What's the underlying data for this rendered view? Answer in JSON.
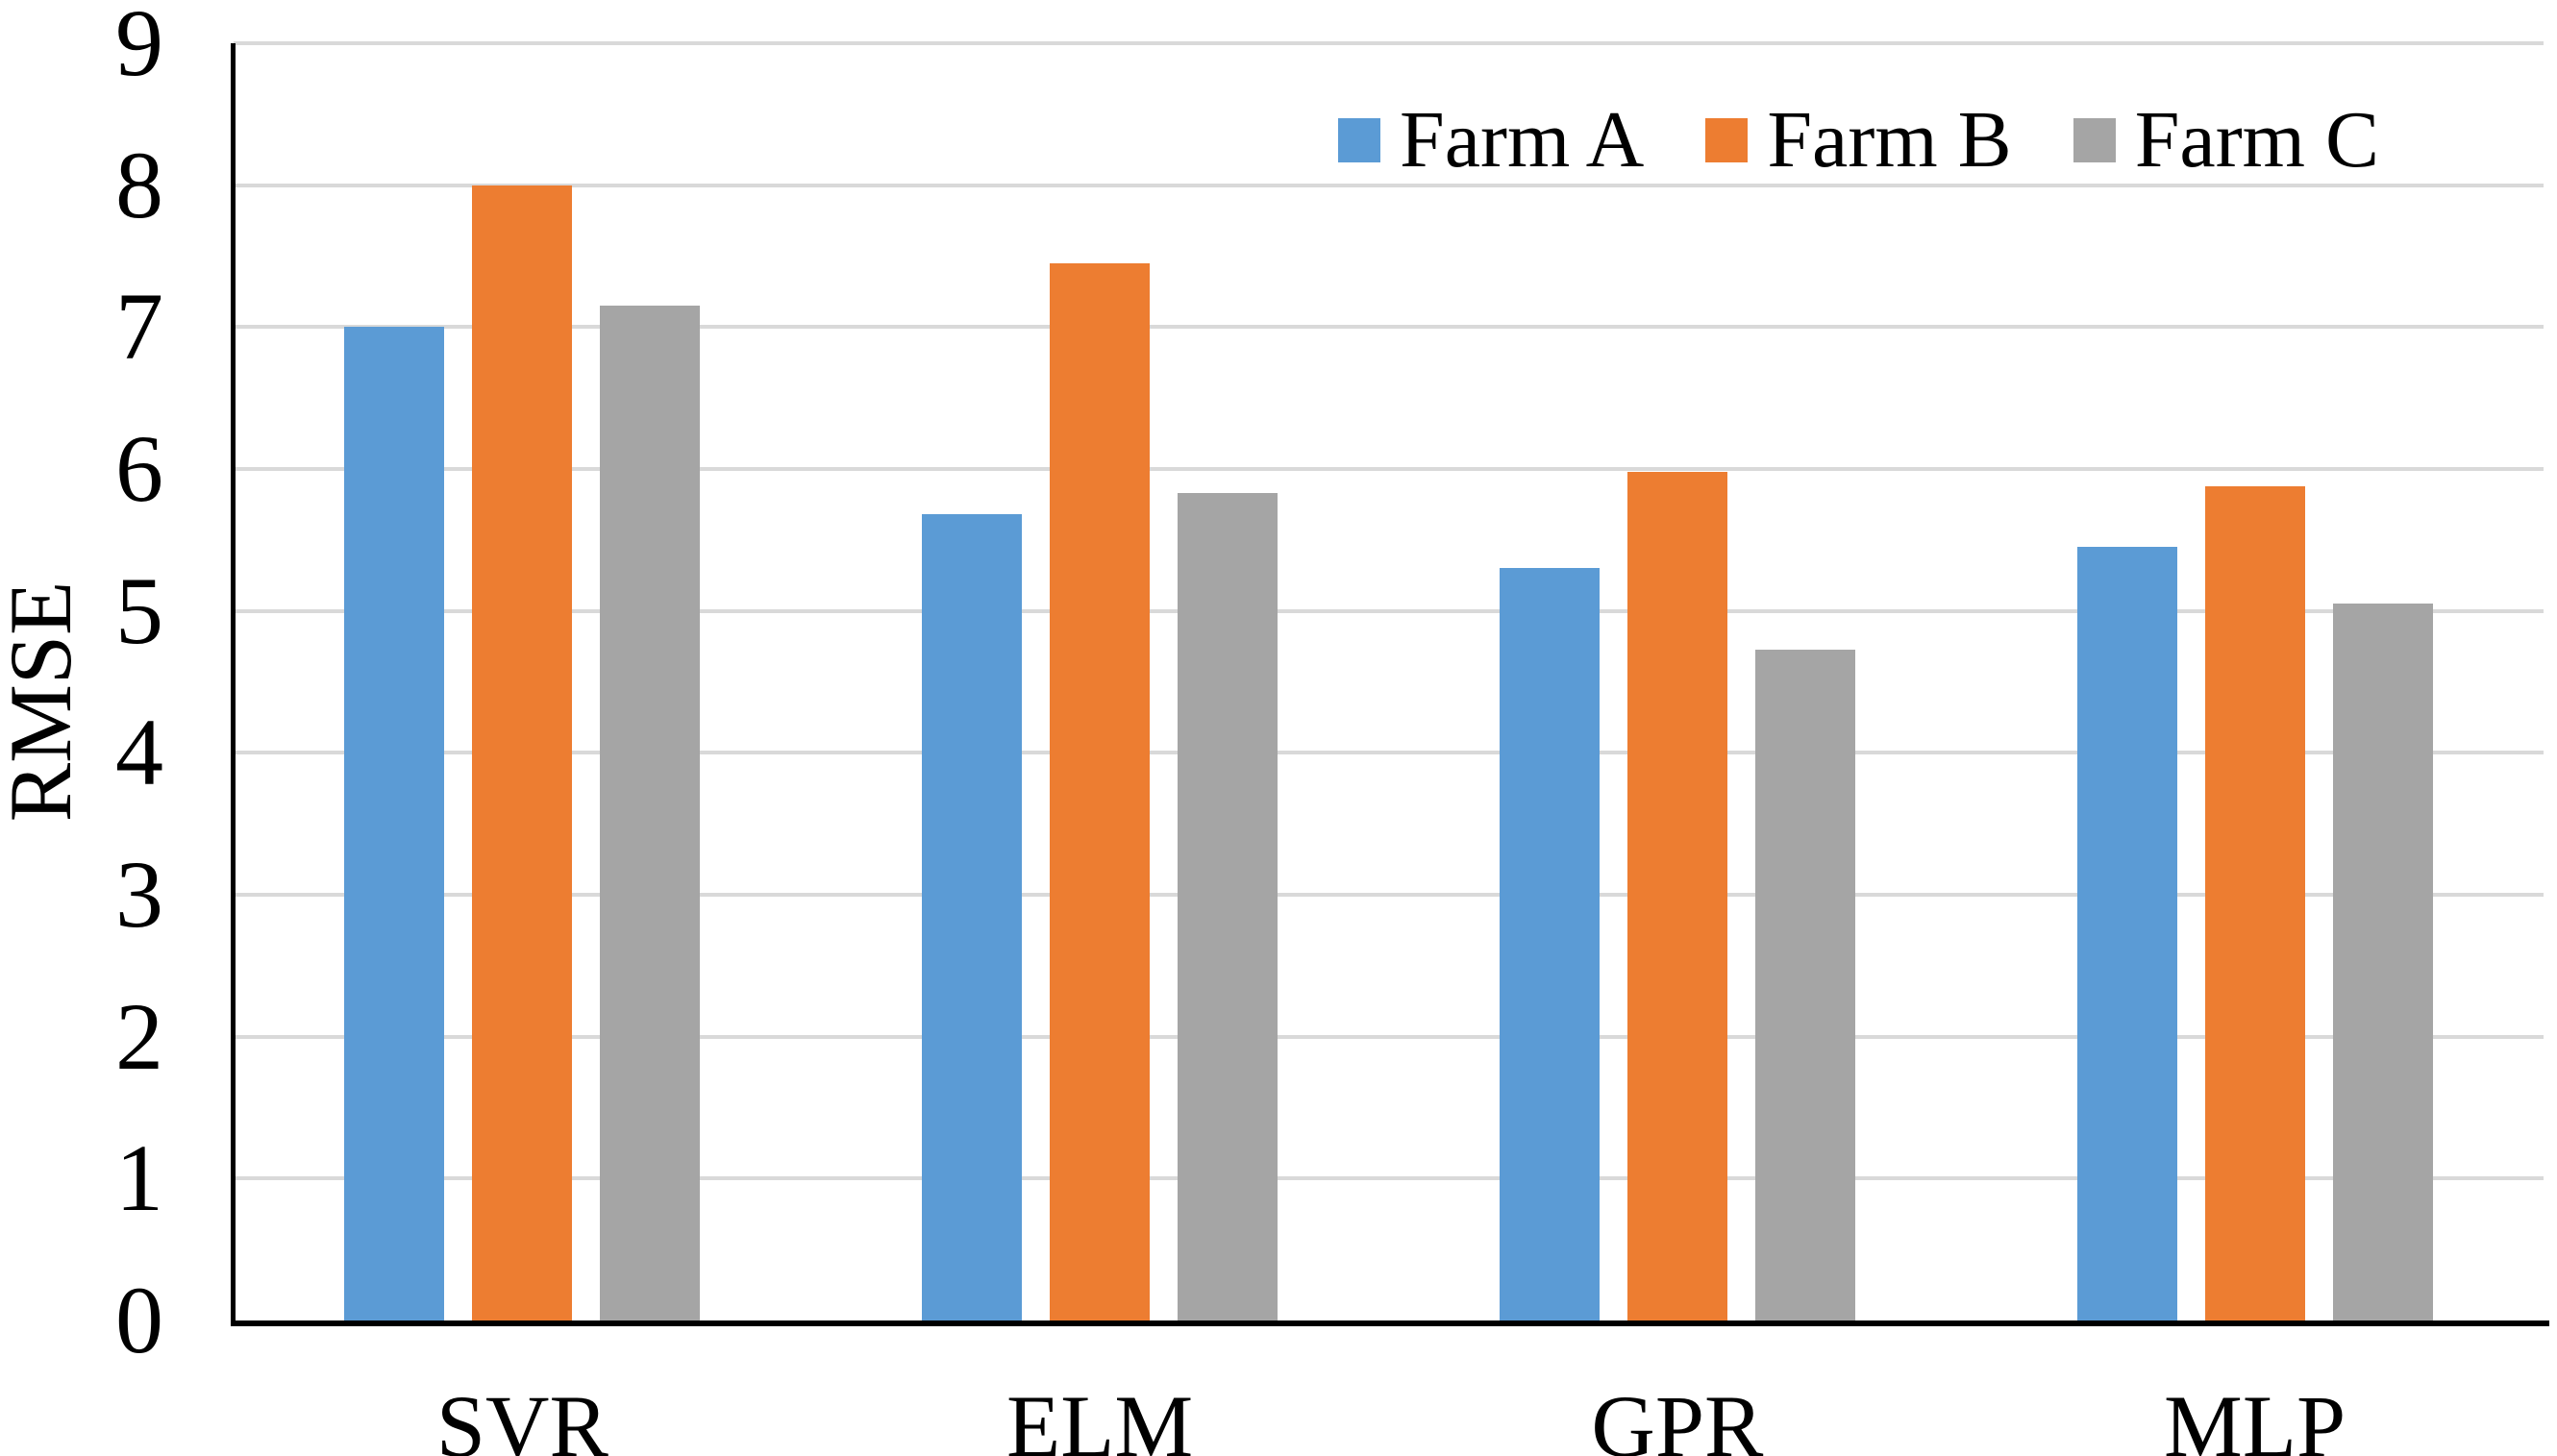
{
  "figure": {
    "background_color": "#ffffff",
    "text_color": "#000000"
  },
  "chart_data": {
    "type": "bar",
    "title": "",
    "xlabel": "",
    "ylabel": "RMSE",
    "categories": [
      "SVR",
      "ELM",
      "GPR",
      "MLP"
    ],
    "series": [
      {
        "name": "Farm A",
        "color": "#5B9BD5",
        "values": [
          7.0,
          5.68,
          5.3,
          5.45
        ]
      },
      {
        "name": "Farm B",
        "color": "#ED7D31",
        "values": [
          8.0,
          7.45,
          5.98,
          5.88
        ]
      },
      {
        "name": "Farm C",
        "color": "#A5A5A5",
        "values": [
          7.15,
          5.83,
          4.73,
          5.05
        ]
      }
    ],
    "ylim": [
      0,
      9
    ],
    "yticks": [
      0,
      1,
      2,
      3,
      4,
      5,
      6,
      7,
      8,
      9
    ],
    "grid": "horizontal",
    "gridline_color": "#D9D9D9",
    "axis_color": "#000000",
    "legend_position": "top-right",
    "legend_entries": [
      "Farm A",
      "Farm B",
      "Farm C"
    ]
  }
}
